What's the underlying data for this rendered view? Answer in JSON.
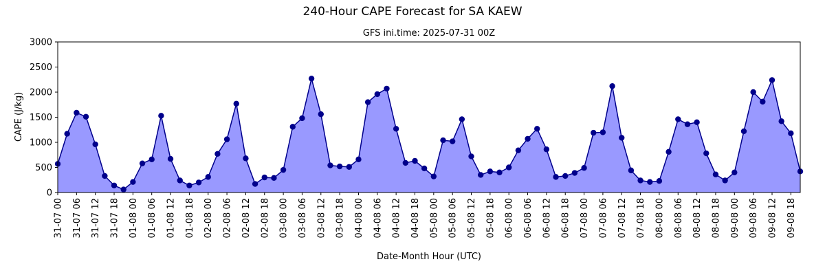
{
  "chart_data": {
    "type": "area",
    "title": "240-Hour CAPE Forecast for SA KAEW",
    "subtitle": "GFS ini.time: 2025-07-31 00Z",
    "xlabel": "Date-Month Hour (UTC)",
    "ylabel": "CAPE (J/kg)",
    "ylim": [
      0,
      3000
    ],
    "yticks": [
      0,
      500,
      1000,
      1500,
      2000,
      2500,
      3000
    ],
    "grid": false,
    "line_color": "#00008b",
    "fill_color": "#9999ff",
    "x_tick_labels": [
      "31-07 00",
      "31-07 06",
      "31-07 12",
      "31-07 18",
      "01-08 00",
      "01-08 06",
      "01-08 12",
      "01-08 18",
      "02-08 00",
      "02-08 06",
      "02-08 12",
      "02-08 18",
      "03-08 00",
      "03-08 06",
      "03-08 12",
      "03-08 18",
      "04-08 00",
      "04-08 06",
      "04-08 12",
      "04-08 18",
      "05-08 00",
      "05-08 06",
      "05-08 12",
      "05-08 18",
      "06-08 00",
      "06-08 06",
      "06-08 12",
      "06-08 18",
      "07-08 00",
      "07-08 06",
      "07-08 12",
      "07-08 18",
      "08-08 00",
      "08-08 06",
      "08-08 12",
      "08-08 18",
      "09-08 00",
      "09-08 06",
      "09-08 12",
      "09-08 18"
    ],
    "x_step_hours": 3,
    "values": [
      570,
      1170,
      1590,
      1510,
      960,
      330,
      140,
      60,
      210,
      580,
      660,
      1530,
      670,
      240,
      140,
      200,
      310,
      770,
      1060,
      1770,
      680,
      170,
      300,
      290,
      450,
      1310,
      1480,
      2270,
      1560,
      540,
      520,
      510,
      660,
      1800,
      1960,
      2070,
      1270,
      590,
      630,
      480,
      320,
      1040,
      1020,
      1460,
      720,
      350,
      420,
      400,
      500,
      840,
      1070,
      1270,
      860,
      310,
      330,
      390,
      490,
      1190,
      1200,
      2120,
      1090,
      440,
      240,
      210,
      230,
      810,
      1460,
      1360,
      1400,
      780,
      360,
      240,
      400,
      1220,
      2000,
      1810,
      2240,
      1420,
      1180,
      420
    ]
  }
}
